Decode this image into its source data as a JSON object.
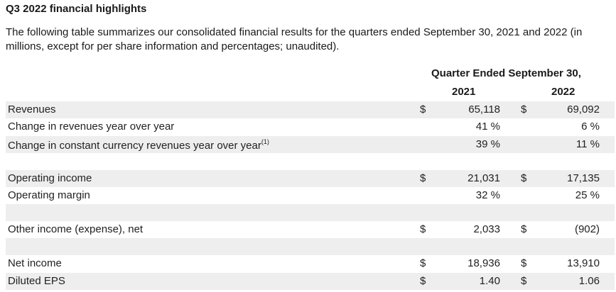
{
  "title": "Q3 2022 financial highlights",
  "intro": "The following table summarizes our consolidated financial results for the quarters ended September 30, 2021 and 2022 (in millions, except for per share information and percentages; unaudited).",
  "table": {
    "header": "Quarter Ended September 30,",
    "year1": "2021",
    "year2": "2022",
    "rows": [
      {
        "label": "Revenues",
        "dollar1": "$",
        "v1": "65,118",
        "dollar2": "$",
        "v2": "69,092"
      },
      {
        "label": "Change in revenues year over year",
        "dollar1": "",
        "v1": "41 %",
        "dollar2": "",
        "v2": "6 %"
      },
      {
        "label": "Change in constant currency revenues year over year",
        "sup": "(1)",
        "dollar1": "",
        "v1": "39 %",
        "dollar2": "",
        "v2": "11 %"
      },
      {
        "label": "Operating income",
        "dollar1": "$",
        "v1": "21,031",
        "dollar2": "$",
        "v2": "17,135"
      },
      {
        "label": "Operating margin",
        "dollar1": "",
        "v1": "32 %",
        "dollar2": "",
        "v2": "25 %"
      },
      {
        "label": "Other income (expense), net",
        "dollar1": "$",
        "v1": "2,033",
        "dollar2": "$",
        "v2": "(902)"
      },
      {
        "label": "Net income",
        "dollar1": "$",
        "v1": "18,936",
        "dollar2": "$",
        "v2": "13,910"
      },
      {
        "label": "Diluted EPS",
        "dollar1": "$",
        "v1": "1.40",
        "dollar2": "$",
        "v2": "1.06"
      }
    ]
  },
  "colors": {
    "shade": "#eeeeee",
    "text": "#222222"
  }
}
